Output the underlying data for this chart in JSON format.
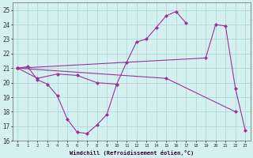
{
  "title": "",
  "xlabel": "Windchill (Refroidissement éolien,°C)",
  "ylabel": "",
  "background_color": "#d5f0f0",
  "grid_color": "#b0d8d8",
  "line_color": "#993399",
  "xlim": [
    -0.5,
    23.5
  ],
  "ylim": [
    16,
    25.5
  ],
  "yticks": [
    16,
    17,
    18,
    19,
    20,
    21,
    22,
    23,
    24,
    25
  ],
  "xticks": [
    0,
    1,
    2,
    3,
    4,
    5,
    6,
    7,
    8,
    9,
    10,
    11,
    12,
    13,
    14,
    15,
    16,
    17,
    18,
    19,
    20,
    21,
    22,
    23
  ],
  "series_data": [
    {
      "x": [
        0,
        1,
        2,
        3,
        4,
        5,
        6,
        7,
        8,
        9,
        10,
        11,
        12,
        13,
        14,
        15,
        16,
        17
      ],
      "y": [
        21.0,
        21.1,
        20.2,
        19.9,
        19.1,
        17.5,
        16.6,
        16.5,
        17.1,
        17.8,
        19.9,
        21.4,
        22.8,
        23.0,
        23.8,
        24.6,
        24.9,
        24.1
      ]
    },
    {
      "x": [
        0,
        2,
        4,
        6,
        8,
        10
      ],
      "y": [
        21.0,
        20.3,
        20.6,
        20.5,
        20.0,
        19.9
      ]
    },
    {
      "x": [
        0,
        19,
        20,
        21,
        22,
        23
      ],
      "y": [
        21.0,
        21.7,
        24.0,
        23.9,
        19.6,
        16.7
      ]
    },
    {
      "x": [
        0,
        15,
        22
      ],
      "y": [
        21.0,
        20.3,
        18.0
      ]
    }
  ]
}
